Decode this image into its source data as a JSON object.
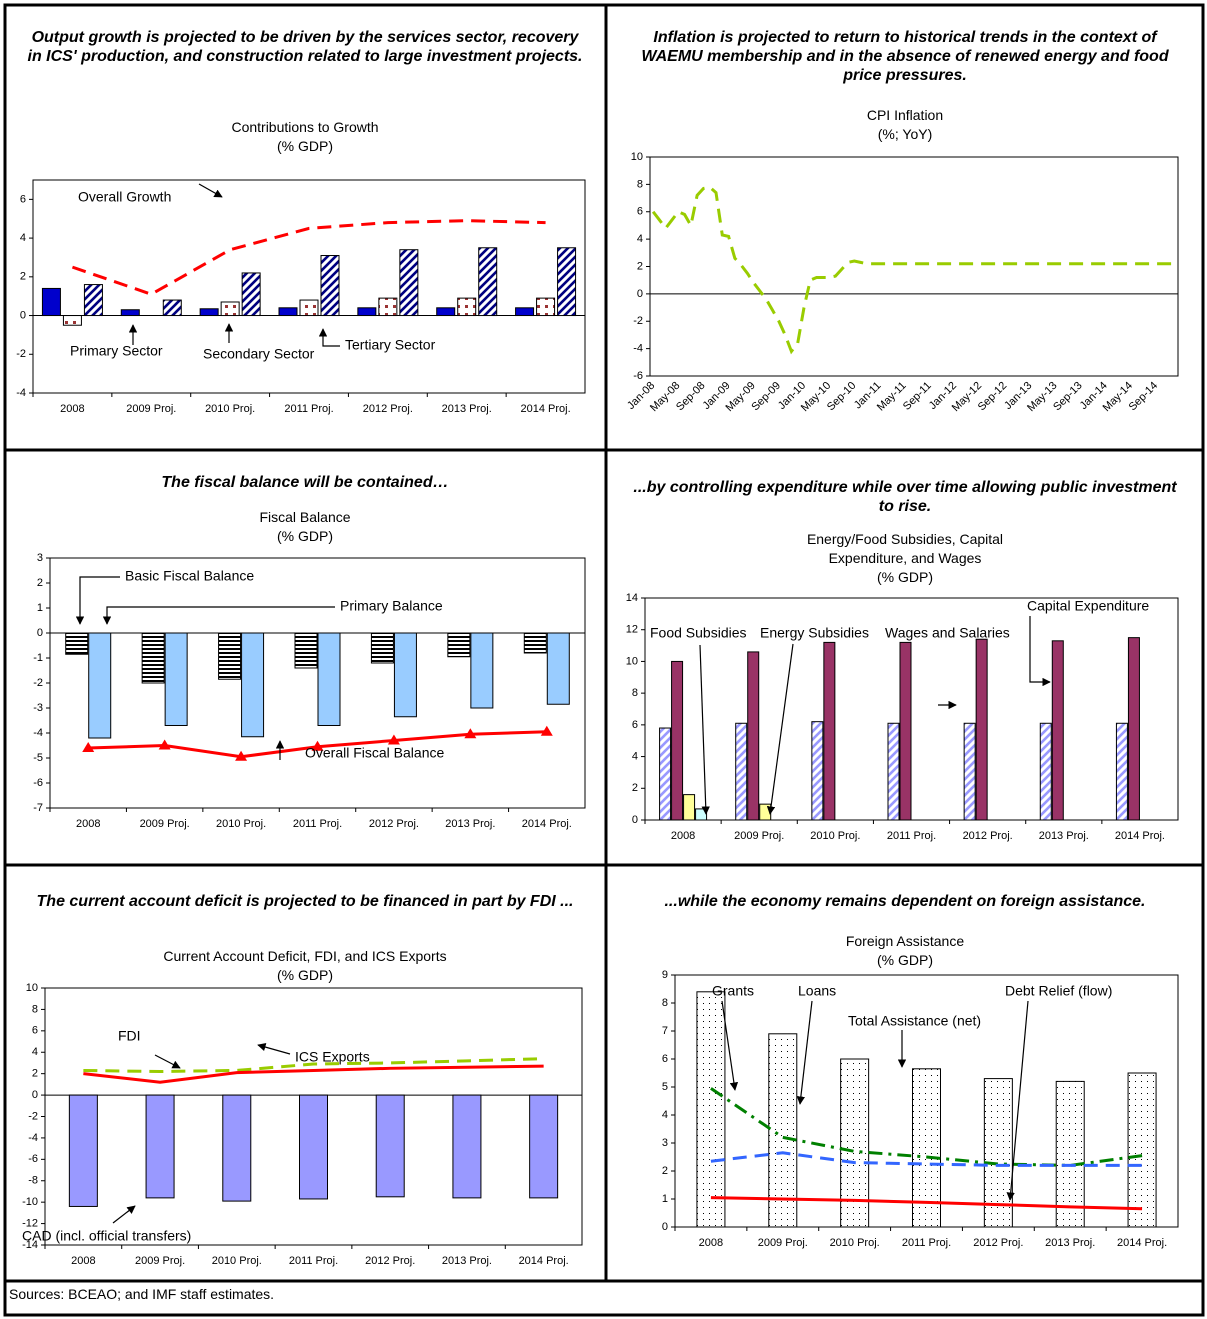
{
  "chart_data": [
    {
      "type": "bar",
      "headline": "Output growth is projected to be driven by the services sector, recovery in ICS' production, and construction related to large investment projects.",
      "title": "Contributions to Growth",
      "subtitle": "(% GDP)",
      "categories": [
        "2008",
        "2009 Proj.",
        "2010 Proj.",
        "2011 Proj.",
        "2012 Proj.",
        "2013 Proj.",
        "2014 Proj."
      ],
      "ylim": [
        -4,
        7
      ],
      "yticks": [
        -4,
        -2,
        0,
        2,
        4,
        6
      ],
      "series": [
        {
          "name": "Primary Sector",
          "type": "bar",
          "color": "#0000cc",
          "values": [
            1.4,
            0.3,
            0.35,
            0.4,
            0.4,
            0.4,
            0.4
          ]
        },
        {
          "name": "Secondary Sector",
          "type": "bar",
          "color": "#993333",
          "pattern": "dots",
          "values": [
            -0.5,
            0,
            0.7,
            0.8,
            0.9,
            0.9,
            0.9
          ]
        },
        {
          "name": "Tertiary Sector",
          "type": "bar",
          "color": "#000080",
          "pattern": "diagonal",
          "values": [
            1.6,
            0.8,
            2.2,
            3.1,
            3.4,
            3.5,
            3.5
          ]
        },
        {
          "name": "Overall Growth",
          "type": "line",
          "color": "#ff0000",
          "dash": "dashed",
          "values": [
            2.5,
            1.1,
            3.4,
            4.5,
            4.8,
            4.9,
            4.8
          ]
        }
      ]
    },
    {
      "type": "line",
      "headline": "Inflation is projected to return to historical trends in the context of WAEMU membership and in the absence of renewed energy and food price pressures.",
      "title": "CPI Inflation",
      "subtitle": "(%; YoY)",
      "categories": [
        "Jan-08",
        null,
        null,
        null,
        "May-08",
        null,
        null,
        null,
        "Sep-08",
        null,
        null,
        null,
        "Jan-09",
        null,
        null,
        null,
        "May-09",
        null,
        null,
        null,
        "Sep-09",
        null,
        null,
        null,
        "Jan-10",
        null,
        null,
        null,
        "May-10",
        null,
        null,
        null,
        "Sep-10",
        null,
        null,
        null,
        "Jan-11",
        null,
        null,
        null,
        "May-11",
        null,
        null,
        null,
        "Sep-11",
        null,
        null,
        null,
        "Jan-12",
        null,
        null,
        null,
        "May-12",
        null,
        null,
        null,
        "Sep-12",
        null,
        null,
        null,
        "Jan-13",
        null,
        null,
        null,
        "May-13",
        null,
        null,
        null,
        "Sep-13",
        null,
        null,
        null,
        "Jan-14",
        null,
        null,
        null,
        "May-14",
        null,
        null,
        null,
        "Sep-14",
        null,
        null,
        null
      ],
      "ylim": [
        -6,
        10
      ],
      "yticks": [
        -6,
        -4,
        -2,
        0,
        2,
        4,
        6,
        8,
        10
      ],
      "series": [
        {
          "name": "CPI Inflation",
          "type": "line",
          "color": "#99cc00",
          "dash": "dashed",
          "values": [
            6.0,
            5.4,
            4.8,
            5.4,
            6.0,
            5.8,
            5.0,
            7.2,
            7.7,
            7.8,
            7.4,
            4.3,
            4.2,
            2.6,
            2.1,
            1.5,
            0.8,
            0.2,
            -0.4,
            -1.2,
            -2.0,
            -3.0,
            -4.2,
            -3.6,
            -1.0,
            1.0,
            1.2,
            1.2,
            1.2,
            1.3,
            1.8,
            2.3,
            2.4,
            2.3,
            2.2,
            2.2,
            2.2,
            2.2,
            2.2,
            2.2,
            2.2,
            2.2,
            2.2,
            2.2,
            2.2,
            2.2,
            2.2,
            2.2,
            2.2,
            2.2,
            2.2,
            2.2,
            2.2,
            2.2,
            2.2,
            2.2,
            2.2,
            2.2,
            2.2,
            2.2,
            2.2,
            2.2,
            2.2,
            2.2,
            2.2,
            2.2,
            2.2,
            2.2,
            2.2,
            2.2,
            2.2,
            2.2,
            2.2,
            2.2,
            2.2,
            2.2,
            2.2,
            2.2,
            2.2,
            2.2,
            2.2,
            2.2,
            2.2,
            2.2
          ]
        }
      ]
    },
    {
      "type": "bar",
      "headline": "The fiscal balance will be contained…",
      "title": "Fiscal Balance",
      "subtitle": "(% GDP)",
      "categories": [
        "2008",
        "2009 Proj.",
        "2010 Proj.",
        "2011 Proj.",
        "2012 Proj.",
        "2013 Proj.",
        "2014 Proj."
      ],
      "ylim": [
        -7,
        3
      ],
      "yticks": [
        -7,
        -6,
        -5,
        -4,
        -3,
        -2,
        -1,
        0,
        1,
        2,
        3
      ],
      "series": [
        {
          "name": "Basic Fiscal Balance",
          "type": "bar",
          "color": "#000000",
          "pattern": "horizontal",
          "values": [
            -0.85,
            -2.0,
            -1.85,
            -1.4,
            -1.2,
            -0.95,
            -0.8
          ]
        },
        {
          "name": "Primary Balance",
          "type": "bar",
          "color": "#99ccff",
          "values": [
            -4.2,
            -3.7,
            -4.15,
            -3.7,
            -3.35,
            -3.0,
            -2.85
          ]
        },
        {
          "name": "Overall Fiscal Balance",
          "type": "line",
          "color": "#ff0000",
          "marker": "triangle",
          "values": [
            -4.6,
            -4.5,
            -4.95,
            -4.55,
            -4.3,
            -4.05,
            -3.95
          ]
        }
      ]
    },
    {
      "type": "bar",
      "headline": "...by controlling expenditure while over time allowing public investment to rise.",
      "title": "Energy/Food Subsidies, Capital Expenditure, and Wages",
      "subtitle": "(% GDP)",
      "categories": [
        "2008",
        "2009 Proj.",
        "2010 Proj.",
        "2011 Proj.",
        "2012 Proj.",
        "2013 Proj.",
        "2014 Proj."
      ],
      "ylim": [
        0,
        14
      ],
      "yticks": [
        0,
        2,
        4,
        6,
        8,
        10,
        12,
        14
      ],
      "series": [
        {
          "name": "Wages and Salaries",
          "type": "bar",
          "color": "#9999ff",
          "pattern": "diagonal",
          "values": [
            5.8,
            6.1,
            6.2,
            6.1,
            6.1,
            6.1,
            6.1
          ]
        },
        {
          "name": "Capital Expenditure",
          "type": "bar",
          "color": "#993366",
          "values": [
            10.0,
            10.6,
            11.2,
            11.2,
            11.4,
            11.3,
            11.5
          ]
        },
        {
          "name": "Energy Subsidies",
          "type": "bar",
          "color": "#ffff99",
          "values": [
            1.6,
            1.0,
            null,
            null,
            null,
            null,
            null
          ]
        },
        {
          "name": "Food Subsidies",
          "type": "bar",
          "color": "#ccffff",
          "values": [
            0.7,
            null,
            null,
            null,
            null,
            null,
            null
          ]
        }
      ]
    },
    {
      "type": "bar",
      "headline": "The current account deficit is projected to be financed in part by FDI ...",
      "title": "Current Account Deficit, FDI, and ICS Exports",
      "subtitle": "(% GDP)",
      "categories": [
        "2008",
        "2009 Proj.",
        "2010 Proj.",
        "2011 Proj.",
        "2012 Proj.",
        "2013 Proj.",
        "2014 Proj."
      ],
      "ylim": [
        -14,
        10
      ],
      "yticks": [
        -14,
        -12,
        -10,
        -8,
        -6,
        -4,
        -2,
        0,
        2,
        4,
        6,
        8,
        10
      ],
      "series": [
        {
          "name": "CAD (incl. official transfers)",
          "type": "bar",
          "color": "#9999ff",
          "values": [
            -10.4,
            -9.6,
            -9.9,
            -9.7,
            -9.5,
            -9.6,
            -9.6
          ]
        },
        {
          "name": "FDI",
          "type": "line",
          "color": "#99cc00",
          "dash": "dashed",
          "values": [
            2.3,
            2.2,
            2.3,
            2.9,
            3.0,
            3.2,
            3.4
          ]
        },
        {
          "name": "ICS Exports",
          "type": "line",
          "color": "#ff0000",
          "values": [
            2.0,
            1.2,
            2.1,
            2.3,
            2.5,
            2.6,
            2.7
          ]
        }
      ]
    },
    {
      "type": "bar",
      "headline": "...while the economy remains dependent on foreign assistance.",
      "title": "Foreign Assistance",
      "subtitle": "(% GDP)",
      "categories": [
        "2008",
        "2009 Proj.",
        "2010 Proj.",
        "2011 Proj.",
        "2012 Proj.",
        "2013 Proj.",
        "2014 Proj."
      ],
      "ylim": [
        0,
        9
      ],
      "yticks": [
        0,
        1,
        2,
        3,
        4,
        5,
        6,
        7,
        8,
        9
      ],
      "series": [
        {
          "name": "Total Assistance (net)",
          "type": "bar",
          "color": "#000000",
          "pattern": "fine-dots",
          "values": [
            8.4,
            6.9,
            6.0,
            5.65,
            5.3,
            5.2,
            5.5
          ]
        },
        {
          "name": "Grants",
          "type": "line",
          "color": "#008000",
          "dash": "dash-dot",
          "values": [
            4.95,
            3.2,
            2.7,
            2.5,
            2.25,
            2.2,
            2.55
          ]
        },
        {
          "name": "Loans",
          "type": "line",
          "color": "#3366ff",
          "dash": "dashed",
          "values": [
            2.35,
            2.65,
            2.3,
            2.25,
            2.2,
            2.2,
            2.2
          ]
        },
        {
          "name": "Debt Relief (flow)",
          "type": "line",
          "color": "#ff0000",
          "values": [
            1.05,
            1.0,
            0.95,
            0.88,
            0.8,
            0.72,
            0.65
          ]
        }
      ]
    }
  ],
  "sources": "Sources: BCEAO; and IMF staff estimates."
}
